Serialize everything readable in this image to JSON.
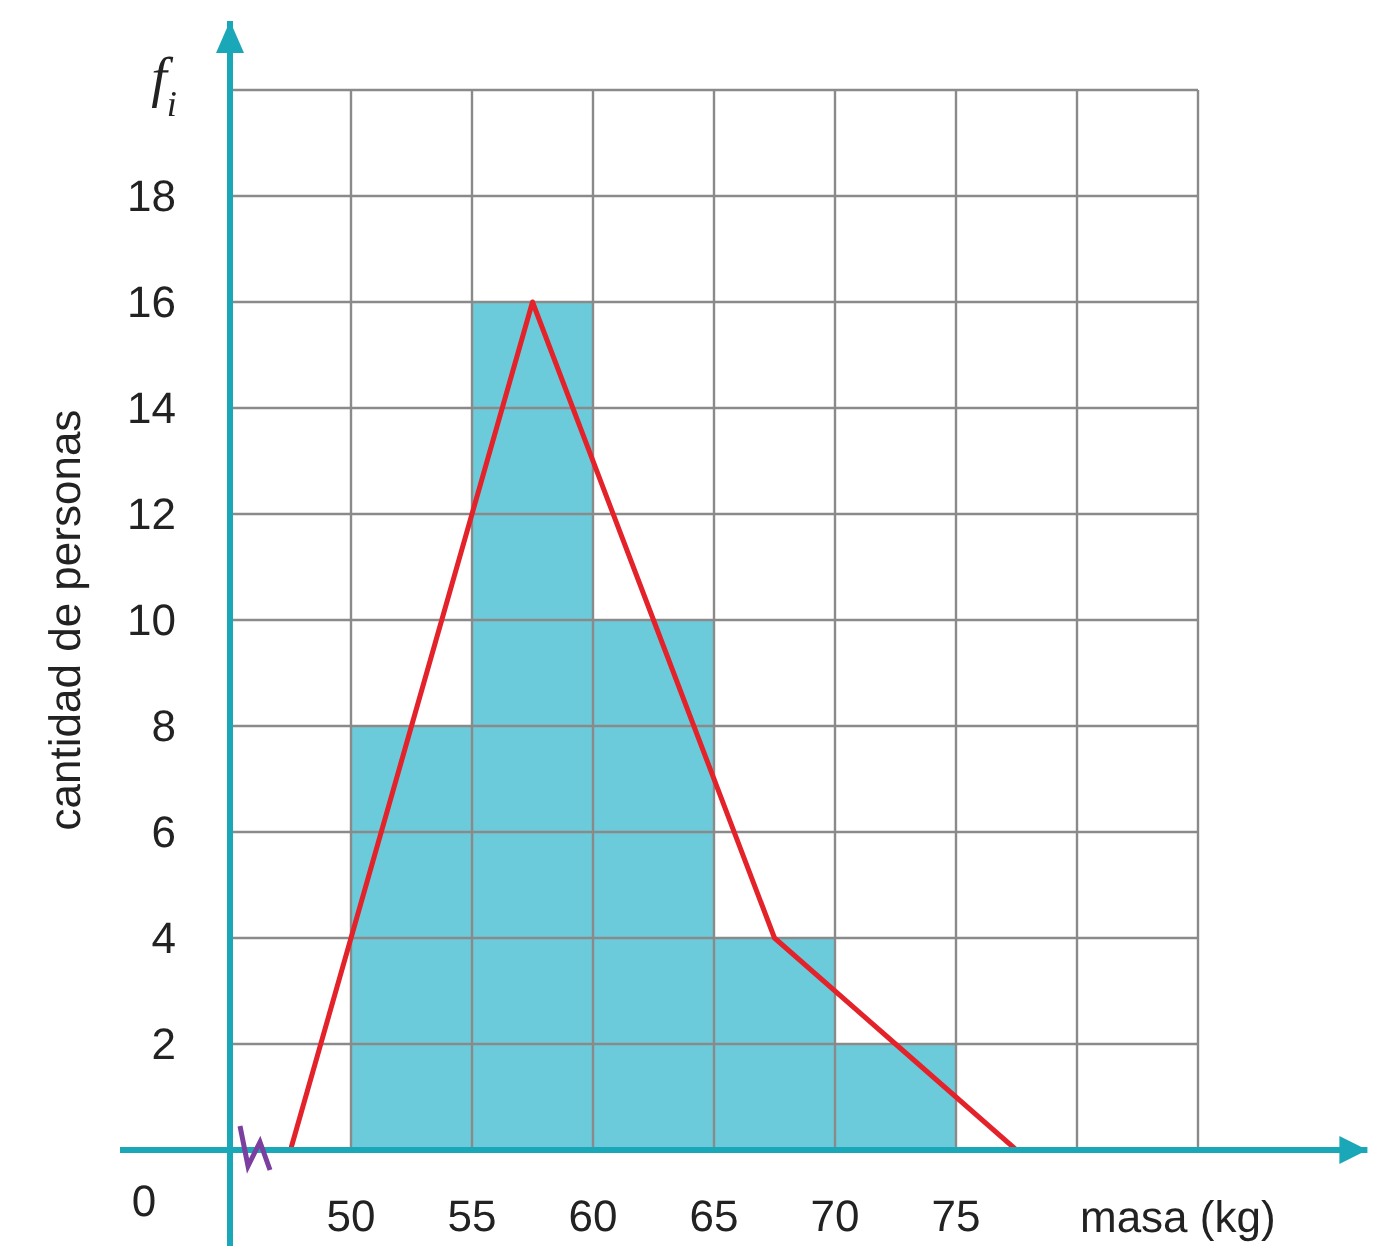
{
  "chart_data": {
    "type": "histogram",
    "ylabel": "cantidad de personas",
    "xlabel": "masa (kg)",
    "annotations": [
      "0",
      "f$_{i}$"
    ],
    "bins": [
      50,
      55,
      60,
      65,
      70,
      75
    ],
    "values": [
      8,
      16,
      10,
      4,
      2
    ],
    "color": "#6bcbdb",
    "series": [
      {
        "type": "line",
        "x": [
          47.5,
          52.5,
          57.5,
          62.5,
          67.5,
          72.5,
          77.5
        ],
        "values": [
          0,
          8,
          16,
          10,
          4,
          2,
          0
        ],
        "color": "#e3222a"
      }
    ],
    "xlim": [
      45,
      92
    ],
    "xticks": [
      50,
      55,
      60,
      65,
      70,
      75,
      {
        "value": 80,
        "label": null
      },
      {
        "value": 85,
        "label": null
      }
    ],
    "ylim": [
      0,
      21.3
    ],
    "yticks": [
      2,
      4,
      6,
      8,
      10,
      12,
      14,
      16,
      18,
      {
        "value": 20,
        "label": null
      }
    ],
    "grid": true
  }
}
